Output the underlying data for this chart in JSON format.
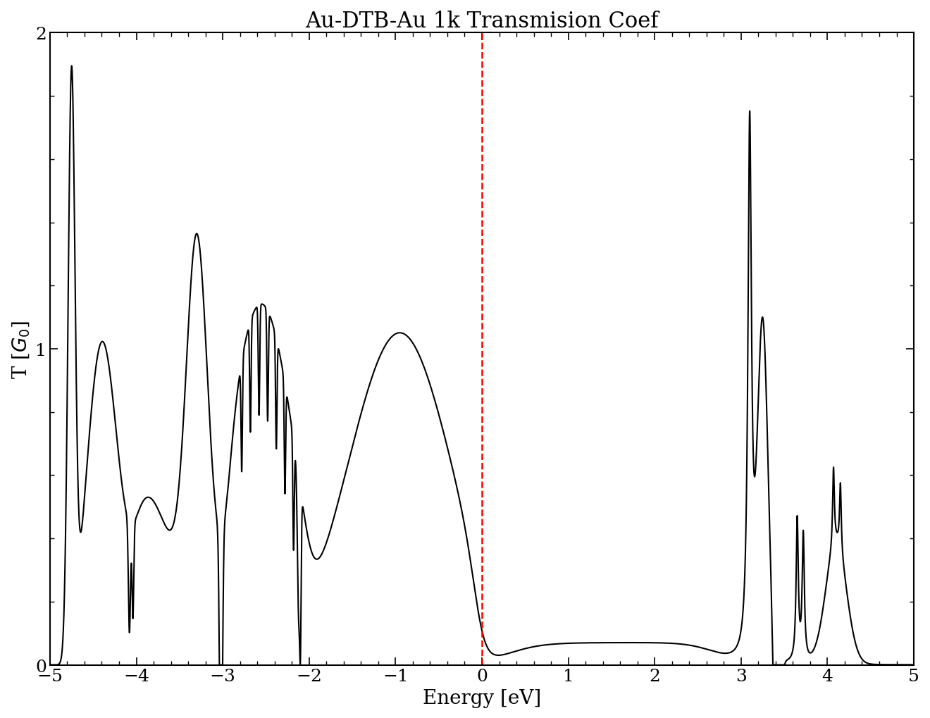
{
  "title": "Au-DTB-Au 1k Transmision Coef",
  "xlabel": "Energy [eV]",
  "ylabel": "T [$G_0$]",
  "xlim": [
    -5,
    5
  ],
  "ylim": [
    0,
    2
  ],
  "xticks": [
    -5,
    -4,
    -3,
    -2,
    -1,
    0,
    1,
    2,
    3,
    4,
    5
  ],
  "yticks": [
    0,
    1,
    2
  ],
  "vline_x": 0.0,
  "vline_color": "#ff0000",
  "line_color": "#000000",
  "bg_color": "#ffffff",
  "title_fontsize": 22,
  "label_fontsize": 20,
  "tick_fontsize": 18,
  "linewidth": 1.5
}
